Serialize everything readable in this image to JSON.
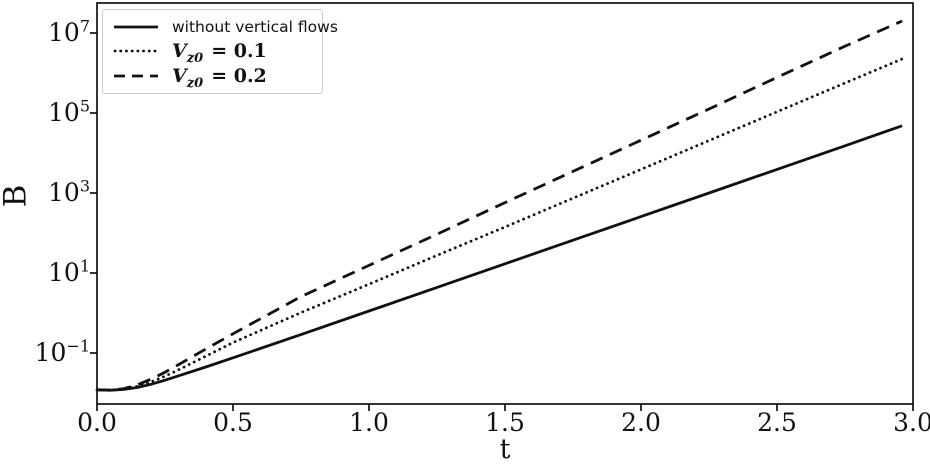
{
  "chart_data": {
    "type": "line",
    "title": "",
    "xlabel": "t",
    "ylabel": "B",
    "x_scale": "linear",
    "y_scale": "log",
    "xlim": [
      0,
      3.0
    ],
    "ylim_log10": [
      -2.28,
      7.75
    ],
    "grid": false,
    "legend_position": "upper left",
    "x_tick_values": [
      0.0,
      0.5,
      1.0,
      1.5,
      2.0,
      2.5,
      3.0
    ],
    "x_tick_labels": [
      "0.0",
      "0.5",
      "1.0",
      "1.5",
      "2.0",
      "2.5",
      "3.0"
    ],
    "y_tick_base": "10",
    "y_tick_exponents": [
      7,
      5,
      3,
      1,
      -1
    ],
    "y_tick_exponent_labels": [
      "7",
      "5",
      "3",
      "1",
      "−1"
    ],
    "line_color": "#111111",
    "t": [
      0,
      0.05,
      0.1,
      0.15,
      0.2,
      0.25,
      0.3,
      0.4,
      0.5,
      0.75,
      1.0,
      1.25,
      1.5,
      1.75,
      2.0,
      2.25,
      2.5,
      2.75,
      2.96
    ],
    "series": [
      {
        "name": "without vertical flows",
        "dash": "solid",
        "color": "#111111",
        "log10B": [
          -1.92,
          -1.93,
          -1.91,
          -1.86,
          -1.78,
          -1.68,
          -1.57,
          -1.35,
          -1.12,
          -0.54,
          0.05,
          0.64,
          1.23,
          1.82,
          2.41,
          3.0,
          3.59,
          4.18,
          4.68
        ]
      },
      {
        "name": "Vz0 = 0.1",
        "dash": "dotted",
        "color": "#111111",
        "log10B": [
          -1.92,
          -1.93,
          -1.9,
          -1.83,
          -1.72,
          -1.58,
          -1.42,
          -1.08,
          -0.74,
          0.01,
          0.72,
          1.44,
          2.15,
          2.87,
          3.59,
          4.31,
          5.03,
          5.75,
          6.35
        ]
      },
      {
        "name": "Vz0 = 0.2",
        "dash": "dashed",
        "color": "#111111",
        "log10B": [
          -1.92,
          -1.93,
          -1.89,
          -1.79,
          -1.65,
          -1.48,
          -1.29,
          -0.9,
          -0.52,
          0.41,
          1.19,
          1.97,
          2.76,
          3.54,
          4.32,
          5.1,
          5.89,
          6.67,
          7.3
        ]
      }
    ]
  },
  "legend": {
    "entries": [
      {
        "label": "without vertical flows",
        "style": "solid"
      },
      {
        "var": "V",
        "sub": "z0",
        "value": "= 0.1",
        "style": "dotted"
      },
      {
        "var": "V",
        "sub": "z0",
        "value": "= 0.2",
        "style": "dashed"
      }
    ]
  }
}
